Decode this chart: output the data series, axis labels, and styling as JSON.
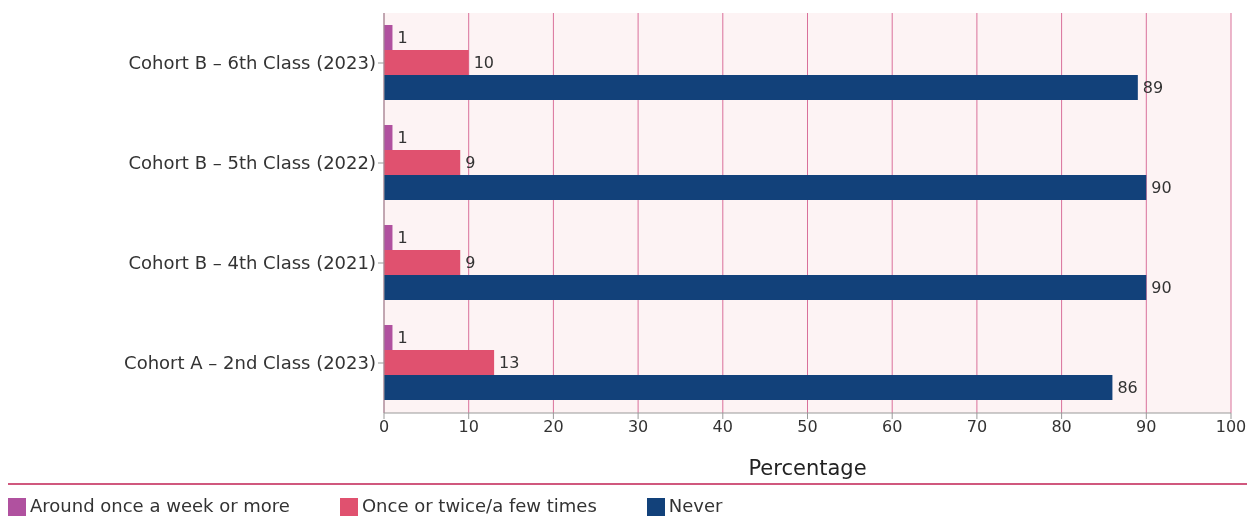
{
  "chart_data": {
    "type": "bar",
    "orientation": "horizontal",
    "xlabel": "Percentage",
    "categories": [
      "Cohort B – 6th Class (2023)",
      "Cohort B – 5th Class (2022)",
      "Cohort B – 4th Class (2021)",
      "Cohort A – 2nd Class (2023)"
    ],
    "series": [
      {
        "name": "Around once a week or more",
        "color": "#b0519f",
        "values": [
          1,
          1,
          1,
          1
        ]
      },
      {
        "name": "Once or twice/a few times",
        "color": "#e0516f",
        "values": [
          10,
          9,
          9,
          13
        ]
      },
      {
        "name": "Never",
        "color": "#12417a",
        "values": [
          89,
          90,
          90,
          86
        ]
      }
    ],
    "xlim": [
      0,
      100
    ],
    "xticks": [
      0,
      10,
      20,
      30,
      40,
      50,
      60,
      70,
      80,
      90,
      100
    ],
    "grid": "x",
    "legend": "bottom",
    "data_labels": true
  }
}
